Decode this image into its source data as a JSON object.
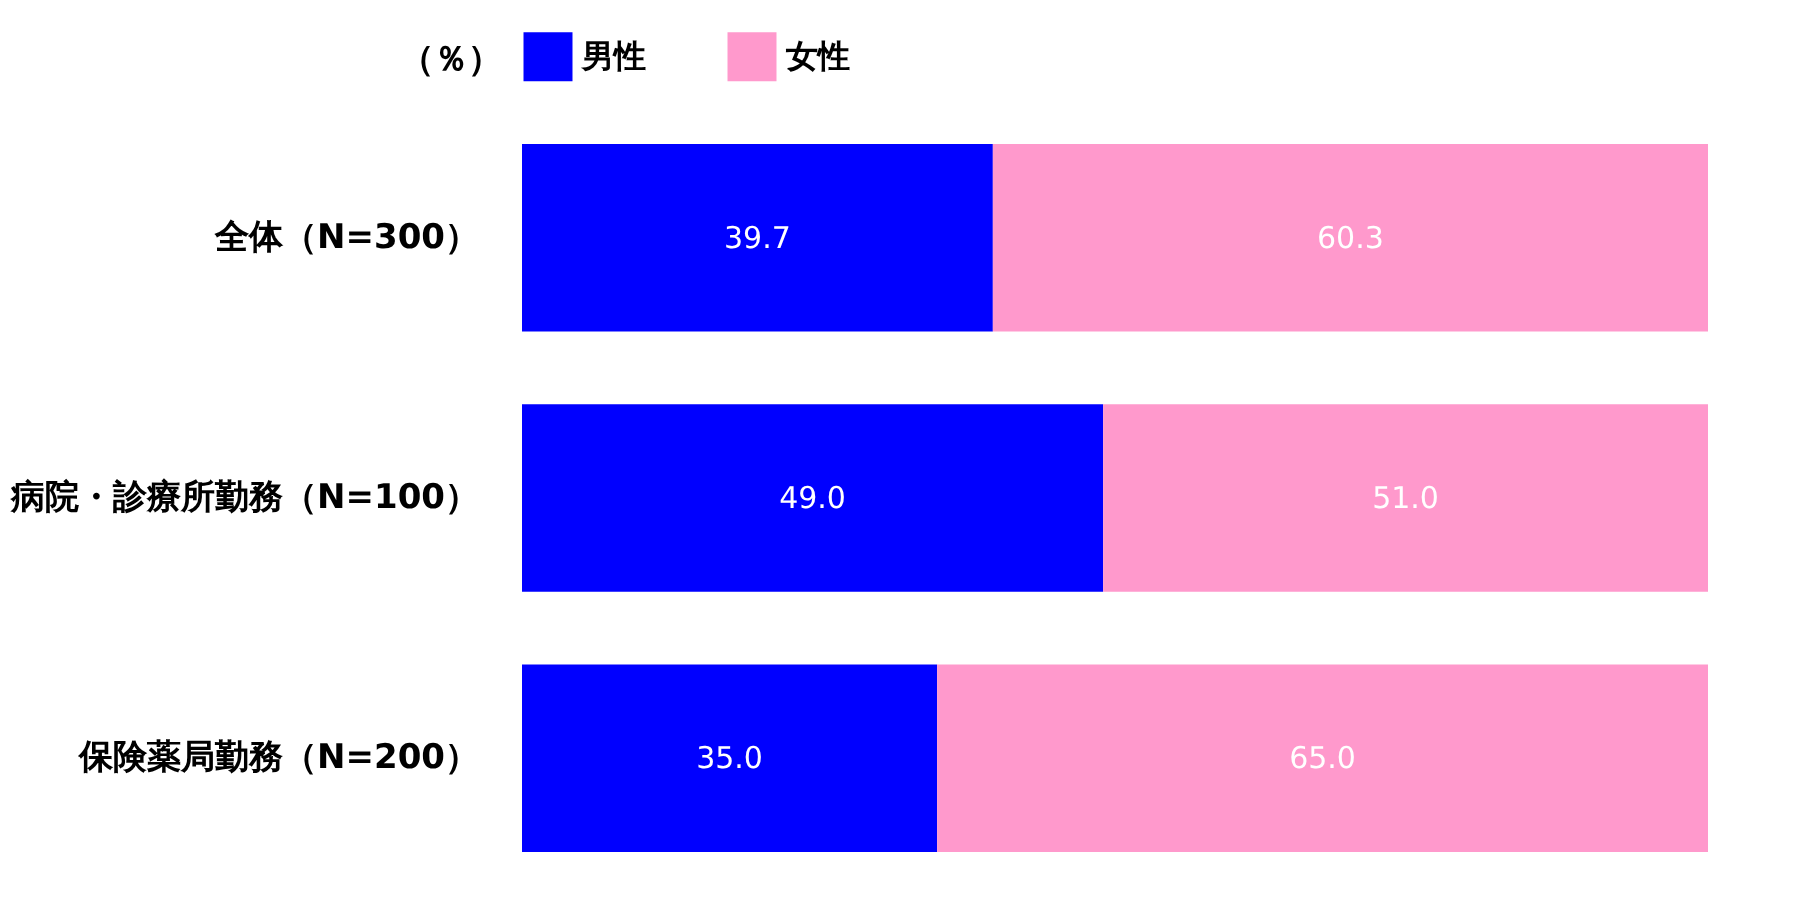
{
  "chart_data": {
    "type": "bar",
    "orientation": "horizontal",
    "stacked": true,
    "legend": "top",
    "annotations": [
      "（％）"
    ],
    "categories": [
      "全体（N=300）",
      "病院・診療所勤務（N=100）",
      "保険薬局勤務（N=200）"
    ],
    "series": [
      {
        "name": "男性",
        "color": "#0000ff",
        "values": [
          39.7,
          49.0,
          35.0
        ],
        "value_labels": [
          "39.7",
          "49.0",
          "35.0"
        ]
      },
      {
        "name": "女性",
        "color": "#ff99cc",
        "values": [
          60.3,
          51.0,
          65.0
        ],
        "value_labels": [
          "60.3",
          "51.0",
          "65.0"
        ]
      }
    ]
  }
}
